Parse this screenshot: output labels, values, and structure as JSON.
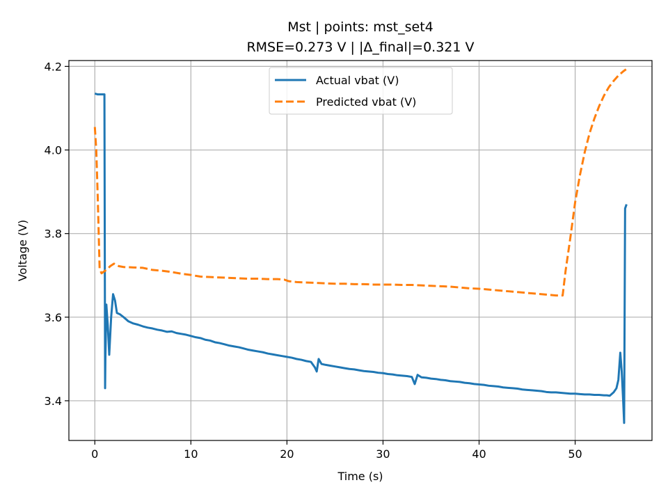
{
  "chart_data": {
    "type": "line",
    "title": "Mst | points: mst_set4",
    "subtitle": "RMSE=0.273 V | |Δ_final|=0.321 V",
    "xlabel": "Time (s)",
    "ylabel": "Voltage (V)",
    "xlim": [
      -2.7,
      58.0
    ],
    "ylim": [
      3.305,
      4.214
    ],
    "xticks": [
      0,
      10,
      20,
      30,
      40,
      50
    ],
    "yticks": [
      3.4,
      3.6,
      3.8,
      4.0,
      4.2
    ],
    "xtick_labels": [
      "0",
      "10",
      "20",
      "30",
      "40",
      "50"
    ],
    "ytick_labels": [
      "3.4",
      "3.6",
      "3.8",
      "4.0",
      "4.2"
    ],
    "grid": true,
    "legend_position": "top-center",
    "series": [
      {
        "name": "Actual vbat (V)",
        "color": "#1f77b4",
        "style": "solid",
        "x": [
          0.0,
          0.3,
          0.6,
          1.0,
          1.07,
          1.1,
          1.2,
          1.35,
          1.5,
          1.7,
          1.9,
          2.1,
          2.3,
          2.6,
          3.0,
          3.5,
          4.0,
          4.5,
          5.0,
          5.5,
          6.0,
          6.5,
          7.0,
          7.5,
          8.0,
          8.5,
          9.0,
          9.5,
          10.0,
          10.5,
          11.0,
          11.5,
          12.0,
          12.5,
          13.0,
          13.5,
          14.0,
          14.5,
          15.0,
          15.5,
          16.0,
          16.5,
          17.0,
          17.5,
          18.0,
          18.5,
          19.0,
          19.5,
          20.0,
          20.5,
          21.0,
          21.5,
          22.0,
          22.5,
          22.9,
          23.1,
          23.3,
          23.6,
          24.0,
          24.5,
          25.0,
          25.5,
          26.0,
          26.5,
          27.0,
          27.5,
          28.0,
          28.5,
          29.0,
          29.5,
          30.0,
          30.5,
          31.0,
          31.5,
          32.0,
          32.5,
          33.0,
          33.3,
          33.6,
          34.0,
          34.5,
          35.0,
          35.5,
          36.0,
          36.5,
          37.0,
          37.5,
          38.0,
          38.5,
          39.0,
          39.5,
          40.0,
          40.5,
          41.0,
          41.5,
          42.0,
          42.5,
          43.0,
          43.5,
          44.0,
          44.5,
          45.0,
          45.5,
          46.0,
          46.5,
          47.0,
          47.5,
          48.0,
          48.5,
          49.0,
          49.5,
          50.0,
          50.5,
          51.0,
          51.5,
          52.0,
          52.5,
          53.0,
          53.3,
          53.6,
          54.0,
          54.3,
          54.5,
          54.7,
          54.85,
          55.0,
          55.1,
          55.2,
          55.35
        ],
        "values": [
          4.135,
          4.133,
          4.133,
          4.133,
          3.43,
          3.5,
          3.63,
          3.58,
          3.51,
          3.6,
          3.655,
          3.64,
          3.61,
          3.607,
          3.6,
          3.59,
          3.585,
          3.582,
          3.578,
          3.575,
          3.573,
          3.57,
          3.568,
          3.565,
          3.566,
          3.562,
          3.56,
          3.558,
          3.555,
          3.552,
          3.55,
          3.546,
          3.544,
          3.54,
          3.538,
          3.535,
          3.532,
          3.53,
          3.528,
          3.525,
          3.522,
          3.52,
          3.518,
          3.516,
          3.513,
          3.511,
          3.509,
          3.507,
          3.505,
          3.503,
          3.5,
          3.498,
          3.495,
          3.493,
          3.48,
          3.47,
          3.5,
          3.488,
          3.486,
          3.484,
          3.482,
          3.48,
          3.478,
          3.476,
          3.475,
          3.473,
          3.471,
          3.47,
          3.469,
          3.467,
          3.466,
          3.464,
          3.463,
          3.461,
          3.46,
          3.459,
          3.457,
          3.44,
          3.462,
          3.456,
          3.455,
          3.453,
          3.452,
          3.45,
          3.449,
          3.447,
          3.446,
          3.445,
          3.443,
          3.442,
          3.44,
          3.439,
          3.438,
          3.436,
          3.435,
          3.434,
          3.432,
          3.431,
          3.43,
          3.429,
          3.427,
          3.426,
          3.425,
          3.424,
          3.423,
          3.421,
          3.42,
          3.42,
          3.419,
          3.418,
          3.417,
          3.417,
          3.416,
          3.415,
          3.415,
          3.414,
          3.414,
          3.413,
          3.413,
          3.412,
          3.42,
          3.43,
          3.45,
          3.515,
          3.47,
          3.4,
          3.347,
          3.86,
          3.87
        ]
      },
      {
        "name": "Predicted vbat (V)",
        "color": "#ff7f0e",
        "style": "dashed",
        "x": [
          0.0,
          0.15,
          0.3,
          0.5,
          0.7,
          1.0,
          1.3,
          1.6,
          2.0,
          2.5,
          3.0,
          4.0,
          5.0,
          6.0,
          7.0,
          8.0,
          9.0,
          10.0,
          11.0,
          12.0,
          13.0,
          14.0,
          15.0,
          16.0,
          17.0,
          18.0,
          19.0,
          19.7,
          20.2,
          21.0,
          22.0,
          23.0,
          24.0,
          25.0,
          26.0,
          27.0,
          28.0,
          29.0,
          30.0,
          31.0,
          32.0,
          33.0,
          34.0,
          35.0,
          36.0,
          37.0,
          38.0,
          39.0,
          40.0,
          41.0,
          42.0,
          43.0,
          44.0,
          45.0,
          46.0,
          47.0,
          48.0,
          48.7,
          49.0,
          49.5,
          50.0,
          50.5,
          51.0,
          51.5,
          52.0,
          52.5,
          53.0,
          53.5,
          54.0,
          54.5,
          55.0,
          55.3
        ],
        "values": [
          4.055,
          4.0,
          3.89,
          3.715,
          3.705,
          3.71,
          3.715,
          3.722,
          3.728,
          3.722,
          3.72,
          3.719,
          3.718,
          3.713,
          3.711,
          3.708,
          3.704,
          3.701,
          3.697,
          3.696,
          3.695,
          3.694,
          3.693,
          3.692,
          3.692,
          3.691,
          3.691,
          3.69,
          3.686,
          3.684,
          3.683,
          3.682,
          3.681,
          3.68,
          3.68,
          3.679,
          3.679,
          3.678,
          3.678,
          3.678,
          3.677,
          3.677,
          3.676,
          3.675,
          3.674,
          3.673,
          3.671,
          3.669,
          3.668,
          3.666,
          3.664,
          3.662,
          3.66,
          3.658,
          3.656,
          3.654,
          3.652,
          3.652,
          3.71,
          3.79,
          3.875,
          3.94,
          3.995,
          4.04,
          4.075,
          4.105,
          4.13,
          4.15,
          4.165,
          4.178,
          4.188,
          4.193
        ]
      }
    ]
  }
}
